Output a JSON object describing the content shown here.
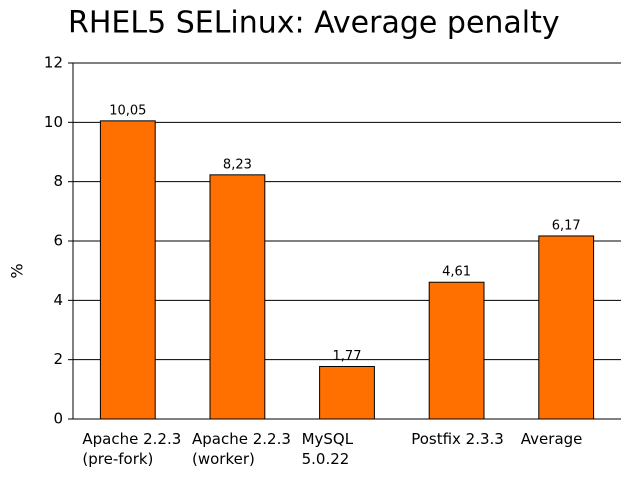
{
  "chart_data": {
    "type": "bar",
    "title": "RHEL5 SELinux: Average penalty",
    "y_label": "%",
    "categories": [
      "Apache 2.2.3 (pre-fork)",
      "Apache 2.2.3 (worker)",
      "MySQL 5.0.22",
      "Postfix 2.3.3",
      "Average"
    ],
    "values": [
      10.05,
      8.23,
      1.77,
      4.61,
      6.17
    ],
    "value_labels": [
      "10,05",
      "8,23",
      "1,77",
      "4,61",
      "6,17"
    ],
    "color": "#ff7000",
    "ylim": [
      0,
      12
    ],
    "yticks": [
      0,
      2,
      4,
      6,
      8,
      10,
      12
    ],
    "grid": true
  }
}
